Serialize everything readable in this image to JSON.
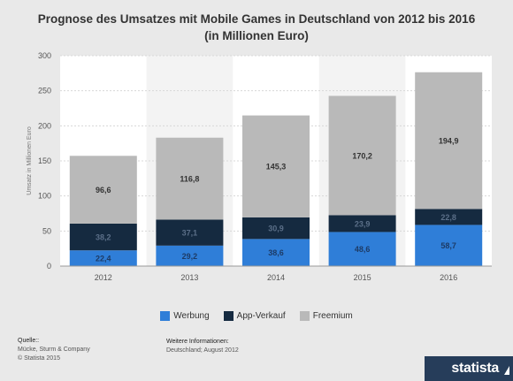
{
  "header": {
    "title_line1": "Prognose des Umsatzes mit Mobile Games in Deutschland von 2012 bis 2016",
    "title_line2": "(in Millionen Euro)"
  },
  "chart_data": {
    "type": "bar",
    "stacked": true,
    "categories": [
      "2012",
      "2013",
      "2014",
      "2015",
      "2016"
    ],
    "series": [
      {
        "name": "Werbung",
        "color": "#2f7ed8",
        "values": [
          22.4,
          29.2,
          38.6,
          48.6,
          58.7
        ],
        "labels": [
          "22,4",
          "29,2",
          "38,6",
          "48,6",
          "58,7"
        ]
      },
      {
        "name": "App-Verkauf",
        "color": "#152a40",
        "values": [
          38.2,
          37.1,
          30.9,
          23.9,
          22.8
        ],
        "labels": [
          "38,2",
          "37,1",
          "30,9",
          "23,9",
          "22,8"
        ]
      },
      {
        "name": "Freemium",
        "color": "#b9b9b9",
        "values": [
          96.6,
          116.8,
          145.3,
          170.2,
          194.9
        ],
        "labels": [
          "96,6",
          "116,8",
          "145,3",
          "170,2",
          "194,9"
        ]
      }
    ],
    "ylabel": "Umsatz in Millionen Euro",
    "ylim": [
      0,
      300
    ],
    "yticks": [
      0,
      50,
      100,
      150,
      200,
      250,
      300
    ],
    "grid": true,
    "legend": "bottom"
  },
  "footer": {
    "source_header": "Quelle::",
    "source_line1": "Mücke, Sturm & Company",
    "source_line2": "© Statista 2015",
    "info_header": "Weitere Informationen:",
    "info_line1": "Deutschland; August 2012",
    "logo": "statista"
  }
}
